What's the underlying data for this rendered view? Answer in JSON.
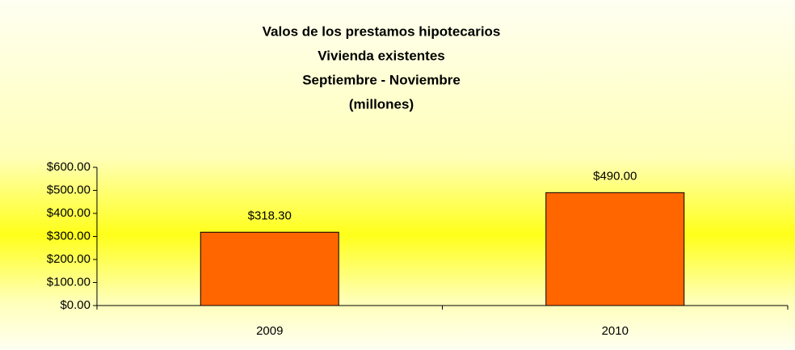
{
  "chart_data": {
    "type": "bar",
    "title": [
      "Valos de los prestamos hipotecarios",
      "Vivienda existentes",
      "Septiembre - Noviembre",
      "(millones)"
    ],
    "categories": [
      "2009",
      "2010"
    ],
    "values": [
      318.3,
      490
    ],
    "value_labels": [
      "$318.30",
      "$490.00"
    ],
    "color": "#ff6600",
    "ylim": [
      0,
      600
    ],
    "yticks": [
      {
        "value": 0,
        "label": "$0.00"
      },
      {
        "value": 100,
        "label": "$100.00"
      },
      {
        "value": 200,
        "label": "$200.00"
      },
      {
        "value": 300,
        "label": "$300.00"
      },
      {
        "value": 400,
        "label": "$400.00"
      },
      {
        "value": 500,
        "label": "$500.00"
      },
      {
        "value": 600,
        "label": "$600.00"
      }
    ],
    "grid": false
  }
}
